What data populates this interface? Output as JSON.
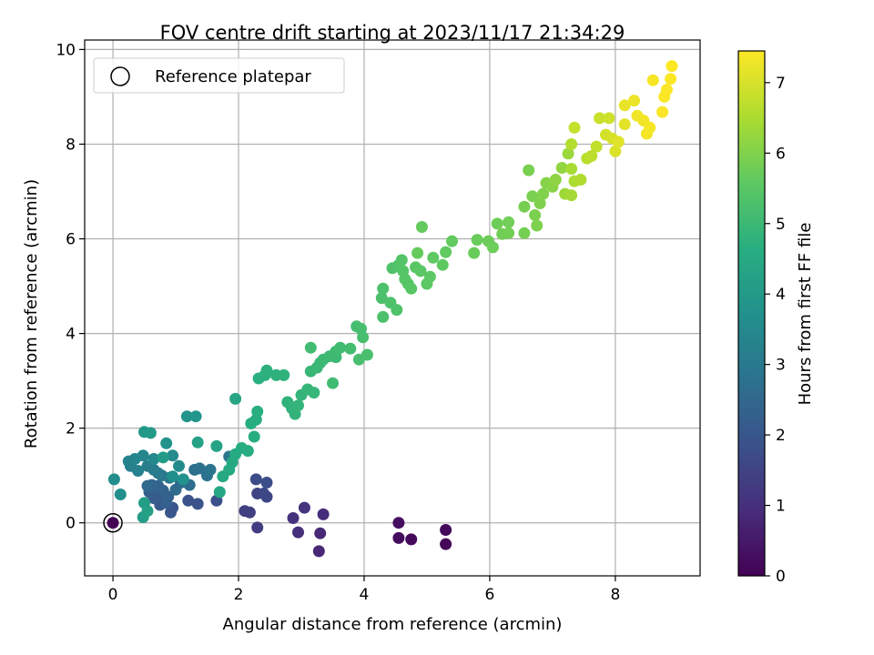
{
  "chart_data": {
    "type": "scatter",
    "title": "FOV centre drift starting at 2023/11/17 21:34:29",
    "xlabel": "Angular distance from reference (arcmin)",
    "ylabel": "Rotation from reference (arcmin)",
    "xlim": [
      -0.45,
      9.35
    ],
    "ylim": [
      -1.12,
      10.2
    ],
    "xticks": [
      0,
      2,
      4,
      6,
      8
    ],
    "yticks": [
      0,
      2,
      4,
      6,
      8,
      10
    ],
    "grid": true,
    "legend": {
      "position": "top-left",
      "entries": [
        "Reference platepar"
      ]
    },
    "reference_point": {
      "x": 0,
      "y": 0
    },
    "colorbar": {
      "label": "Hours from first FF file",
      "range": [
        0,
        7.45
      ],
      "ticks": [
        0,
        1,
        2,
        3,
        4,
        5,
        6,
        7
      ],
      "colormap": "viridis"
    },
    "points": [
      [
        5.3,
        -0.45,
        0.1
      ],
      [
        5.3,
        -0.15,
        0.15
      ],
      [
        4.75,
        -0.35,
        0.2
      ],
      [
        4.55,
        -0.32,
        0.25
      ],
      [
        4.55,
        0.0,
        0.3
      ],
      [
        3.28,
        -0.6,
        0.8
      ],
      [
        3.3,
        -0.22,
        0.85
      ],
      [
        3.35,
        0.18,
        0.9
      ],
      [
        2.95,
        -0.2,
        1.0
      ],
      [
        2.87,
        0.1,
        1.05
      ],
      [
        3.05,
        0.32,
        1.1
      ],
      [
        2.3,
        -0.1,
        1.3
      ],
      [
        2.18,
        0.22,
        1.35
      ],
      [
        2.1,
        0.25,
        1.4
      ],
      [
        2.3,
        0.62,
        1.5
      ],
      [
        2.45,
        0.55,
        1.55
      ],
      [
        2.4,
        0.62,
        1.6
      ],
      [
        2.28,
        0.92,
        1.7
      ],
      [
        2.45,
        0.85,
        1.75
      ],
      [
        1.65,
        0.47,
        1.8
      ],
      [
        1.35,
        0.4,
        1.85
      ],
      [
        1.2,
        0.47,
        1.9
      ],
      [
        0.95,
        0.32,
        1.95
      ],
      [
        0.92,
        0.22,
        2.0
      ],
      [
        0.75,
        0.38,
        2.05
      ],
      [
        0.7,
        0.55,
        2.1
      ],
      [
        0.65,
        0.52,
        2.15
      ],
      [
        0.58,
        0.65,
        2.2
      ],
      [
        0.85,
        0.42,
        2.25
      ],
      [
        0.88,
        0.55,
        2.3
      ],
      [
        0.8,
        0.68,
        2.35
      ],
      [
        0.72,
        0.78,
        2.4
      ],
      [
        0.62,
        0.8,
        2.45
      ],
      [
        0.55,
        0.78,
        2.5
      ],
      [
        1.0,
        0.7,
        2.55
      ],
      [
        1.08,
        0.85,
        2.6
      ],
      [
        1.22,
        0.8,
        2.65
      ],
      [
        1.3,
        1.12,
        2.7
      ],
      [
        1.38,
        1.15,
        2.75
      ],
      [
        1.5,
        1.0,
        2.8
      ],
      [
        1.55,
        1.12,
        2.85
      ],
      [
        1.85,
        1.4,
        2.9
      ],
      [
        0.9,
        0.95,
        2.95
      ],
      [
        0.78,
        1.0,
        3.0
      ],
      [
        0.72,
        1.05,
        3.05
      ],
      [
        0.65,
        1.12,
        3.1
      ],
      [
        0.55,
        1.2,
        3.15
      ],
      [
        0.4,
        1.1,
        3.2
      ],
      [
        0.28,
        1.2,
        3.25
      ],
      [
        0.25,
        1.3,
        3.3
      ],
      [
        0.35,
        1.35,
        3.35
      ],
      [
        0.48,
        1.42,
        3.4
      ],
      [
        0.65,
        1.35,
        3.45
      ],
      [
        0.95,
        1.42,
        3.5
      ],
      [
        1.05,
        1.2,
        3.55
      ],
      [
        0.02,
        0.92,
        3.6
      ],
      [
        0.12,
        0.6,
        3.65
      ],
      [
        0.95,
        0.98,
        3.7
      ],
      [
        1.12,
        0.92,
        3.75
      ],
      [
        0.85,
        1.68,
        3.8
      ],
      [
        1.18,
        2.25,
        3.85
      ],
      [
        1.32,
        2.25,
        3.9
      ],
      [
        0.5,
        1.92,
        3.95
      ],
      [
        0.6,
        1.9,
        4.0
      ],
      [
        0.8,
        1.38,
        4.05
      ],
      [
        0.5,
        0.42,
        4.1
      ],
      [
        0.48,
        0.12,
        4.15
      ],
      [
        0.55,
        0.25,
        4.2
      ],
      [
        1.35,
        1.7,
        4.25
      ],
      [
        1.65,
        1.62,
        4.3
      ],
      [
        1.95,
        2.62,
        4.35
      ],
      [
        1.7,
        0.65,
        4.4
      ],
      [
        1.75,
        0.98,
        4.45
      ],
      [
        1.85,
        1.12,
        4.5
      ],
      [
        1.9,
        1.28,
        4.52
      ],
      [
        1.95,
        1.45,
        4.55
      ],
      [
        2.05,
        1.58,
        4.58
      ],
      [
        2.15,
        1.52,
        4.6
      ],
      [
        2.25,
        1.82,
        4.62
      ],
      [
        2.2,
        2.1,
        4.64
      ],
      [
        2.28,
        2.18,
        4.66
      ],
      [
        2.3,
        2.35,
        4.68
      ],
      [
        2.32,
        3.05,
        4.7
      ],
      [
        2.42,
        3.12,
        4.72
      ],
      [
        2.45,
        3.22,
        4.74
      ],
      [
        2.6,
        3.12,
        4.76
      ],
      [
        2.72,
        3.12,
        4.78
      ],
      [
        2.78,
        2.55,
        4.8
      ],
      [
        2.85,
        2.42,
        4.82
      ],
      [
        2.9,
        2.3,
        4.84
      ],
      [
        2.95,
        2.48,
        4.86
      ],
      [
        3.0,
        2.7,
        4.88
      ],
      [
        3.1,
        2.82,
        4.9
      ],
      [
        3.2,
        2.75,
        4.92
      ],
      [
        3.15,
        3.2,
        4.94
      ],
      [
        3.25,
        3.28,
        4.96
      ],
      [
        3.3,
        3.38,
        4.98
      ],
      [
        3.35,
        3.45,
        5.0
      ],
      [
        3.45,
        3.52,
        5.02
      ],
      [
        3.55,
        3.5,
        5.04
      ],
      [
        3.55,
        3.62,
        5.06
      ],
      [
        3.62,
        3.7,
        5.08
      ],
      [
        3.5,
        2.95,
        5.1
      ],
      [
        3.15,
        3.7,
        5.12
      ],
      [
        3.78,
        3.68,
        5.14
      ],
      [
        3.88,
        4.15,
        5.16
      ],
      [
        3.95,
        4.1,
        5.18
      ],
      [
        3.98,
        3.92,
        5.2
      ],
      [
        3.92,
        3.45,
        5.22
      ],
      [
        4.05,
        3.55,
        5.24
      ],
      [
        4.3,
        4.35,
        5.26
      ],
      [
        4.28,
        4.75,
        5.28
      ],
      [
        4.3,
        4.95,
        5.3
      ],
      [
        4.42,
        4.65,
        5.32
      ],
      [
        4.52,
        4.5,
        5.34
      ],
      [
        4.45,
        5.38,
        5.36
      ],
      [
        4.55,
        5.45,
        5.38
      ],
      [
        4.6,
        5.55,
        5.4
      ],
      [
        4.62,
        5.32,
        5.42
      ],
      [
        4.65,
        5.15,
        5.44
      ],
      [
        4.7,
        5.05,
        5.46
      ],
      [
        4.75,
        4.95,
        5.48
      ],
      [
        4.82,
        5.4,
        5.5
      ],
      [
        4.9,
        5.32,
        5.52
      ],
      [
        5.0,
        5.05,
        5.54
      ],
      [
        5.05,
        5.2,
        5.56
      ],
      [
        5.1,
        5.6,
        5.58
      ],
      [
        5.25,
        5.45,
        5.6
      ],
      [
        5.3,
        5.72,
        5.62
      ],
      [
        5.4,
        5.95,
        5.64
      ],
      [
        4.92,
        6.25,
        5.66
      ],
      [
        4.85,
        5.7,
        5.68
      ],
      [
        5.75,
        5.7,
        5.7
      ],
      [
        5.8,
        5.98,
        5.72
      ],
      [
        5.98,
        5.95,
        5.74
      ],
      [
        6.05,
        5.82,
        5.76
      ],
      [
        6.12,
        6.32,
        5.78
      ],
      [
        6.2,
        6.1,
        5.8
      ],
      [
        6.3,
        6.35,
        5.82
      ],
      [
        6.3,
        6.12,
        5.84
      ],
      [
        6.55,
        6.12,
        5.86
      ],
      [
        6.55,
        6.68,
        5.88
      ],
      [
        6.62,
        7.45,
        5.9
      ],
      [
        6.68,
        6.9,
        5.92
      ],
      [
        6.72,
        6.5,
        5.94
      ],
      [
        6.75,
        6.28,
        5.96
      ],
      [
        6.8,
        6.75,
        5.98
      ],
      [
        6.85,
        6.95,
        6.0
      ],
      [
        6.9,
        7.18,
        6.05
      ],
      [
        7.0,
        7.1,
        6.1
      ],
      [
        7.05,
        7.25,
        6.15
      ],
      [
        7.15,
        7.5,
        6.2
      ],
      [
        7.25,
        7.8,
        6.3
      ],
      [
        7.2,
        6.95,
        6.35
      ],
      [
        7.3,
        6.92,
        6.4
      ],
      [
        7.3,
        7.48,
        6.45
      ],
      [
        7.35,
        7.22,
        6.5
      ],
      [
        7.45,
        7.25,
        6.55
      ],
      [
        7.3,
        8.0,
        6.6
      ],
      [
        7.55,
        7.7,
        6.65
      ],
      [
        7.62,
        7.75,
        6.7
      ],
      [
        7.7,
        7.95,
        6.75
      ],
      [
        7.35,
        8.35,
        6.8
      ],
      [
        7.75,
        8.55,
        6.85
      ],
      [
        7.9,
        8.55,
        6.9
      ],
      [
        7.85,
        8.2,
        6.95
      ],
      [
        7.95,
        8.12,
        7.0
      ],
      [
        8.0,
        7.85,
        7.05
      ],
      [
        8.05,
        8.05,
        7.1
      ],
      [
        8.15,
        8.42,
        7.15
      ],
      [
        8.15,
        8.82,
        7.2
      ],
      [
        8.3,
        8.92,
        7.25
      ],
      [
        8.35,
        8.6,
        7.3
      ],
      [
        8.45,
        8.5,
        7.32
      ],
      [
        8.5,
        8.22,
        7.34
      ],
      [
        8.55,
        8.35,
        7.36
      ],
      [
        8.6,
        9.35,
        7.38
      ],
      [
        8.75,
        8.68,
        7.4
      ],
      [
        8.78,
        9.0,
        7.42
      ],
      [
        8.82,
        9.15,
        7.43
      ],
      [
        8.88,
        9.38,
        7.44
      ],
      [
        8.9,
        9.65,
        7.45
      ]
    ]
  }
}
